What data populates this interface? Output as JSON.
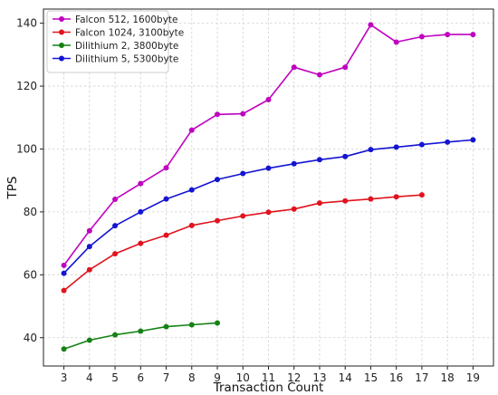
{
  "chart_data": {
    "type": "line",
    "title": "",
    "xlabel": "Transaction Count",
    "ylabel": "TPS",
    "xlim": [
      2.2,
      19.8
    ],
    "ylim": [
      31,
      144.5
    ],
    "xticks": [
      3,
      4,
      5,
      6,
      7,
      8,
      9,
      10,
      11,
      12,
      13,
      14,
      15,
      16,
      17,
      18,
      19
    ],
    "yticks": [
      40,
      60,
      80,
      100,
      120,
      140
    ],
    "grid": true,
    "legend_position": "top-left",
    "series": [
      {
        "name": "Falcon 512, 1600byte",
        "color": "#c000c0",
        "x": [
          3,
          4,
          5,
          6,
          7,
          8,
          9,
          10,
          11,
          12,
          13,
          14,
          15,
          16,
          17,
          18,
          19
        ],
        "values": [
          63.0,
          74.0,
          84.0,
          89.0,
          94.0,
          106.0,
          111.0,
          111.2,
          115.7,
          126.0,
          123.6,
          126.0,
          139.5,
          134.0,
          135.7,
          136.4,
          136.4
        ]
      },
      {
        "name": "Falcon 1024, 3100byte",
        "color": "#e0141e",
        "x": [
          3,
          4,
          5,
          6,
          7,
          8,
          9,
          10,
          11,
          12,
          13,
          14,
          15,
          16,
          17
        ],
        "values": [
          55.0,
          61.6,
          66.7,
          70.0,
          72.6,
          75.7,
          77.2,
          78.7,
          79.9,
          80.9,
          82.8,
          83.5,
          84.1,
          84.8,
          85.4
        ]
      },
      {
        "name": "Dilithium 2, 3800byte",
        "color": "#148214",
        "x": [
          3,
          4,
          5,
          6,
          7,
          8,
          9
        ],
        "values": [
          36.4,
          39.2,
          40.9,
          42.1,
          43.5,
          44.1,
          44.7
        ]
      },
      {
        "name": "Dilithium 5, 5300byte",
        "color": "#1414d2",
        "x": [
          3,
          4,
          5,
          6,
          7,
          8,
          9,
          10,
          11,
          12,
          13,
          14,
          15,
          16,
          17,
          18,
          19
        ],
        "values": [
          60.5,
          69.0,
          75.6,
          80.0,
          84.1,
          87.0,
          90.3,
          92.2,
          93.9,
          95.3,
          96.6,
          97.6,
          99.8,
          100.6,
          101.4,
          102.2,
          102.9
        ]
      }
    ]
  }
}
